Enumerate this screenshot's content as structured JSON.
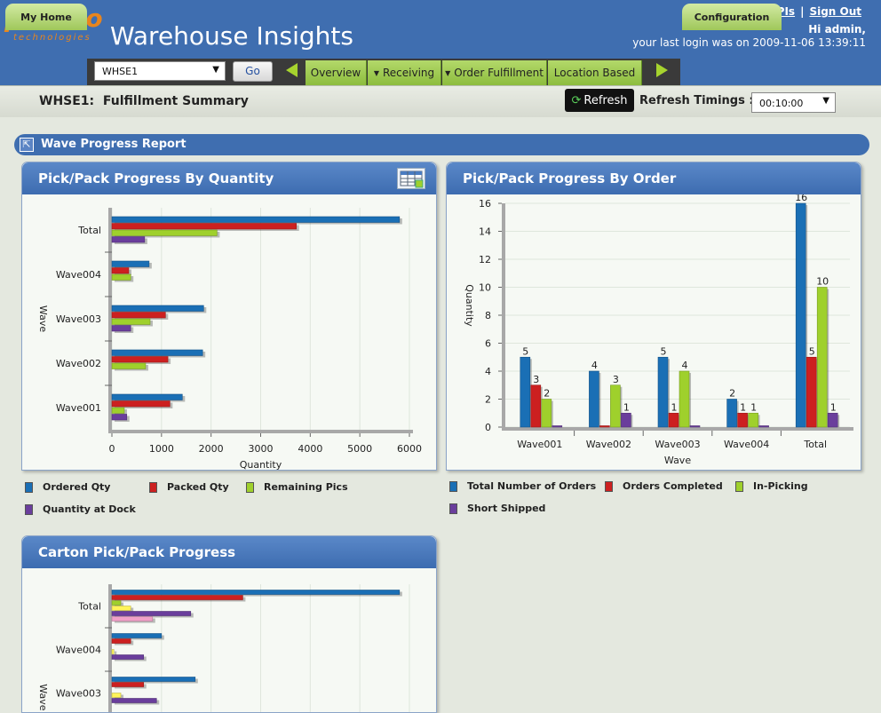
{
  "header": {
    "logo_main": "pronto",
    "logo_sub": "technologies",
    "app_title": "Warehouse Insights",
    "links": [
      "Key KPIs",
      "Sign Out"
    ],
    "link_separator": "|",
    "greeting": "Hi admin,",
    "last_login": "your last login was on 2009-11-06 13:39:11"
  },
  "nav": {
    "my_home": "My Home",
    "warehouse_select": "WHSE1",
    "go_label": "Go",
    "menu_items": [
      {
        "label": "Overview",
        "dropdown": false
      },
      {
        "label": "Receiving",
        "dropdown": true
      },
      {
        "label": "Order Fulfillment",
        "dropdown": true
      },
      {
        "label": "Location Based",
        "dropdown": false
      }
    ],
    "configuration": "Configuration"
  },
  "subbar": {
    "page_heading": "WHSE1:  Fulfillment Summary",
    "refresh_label": "Refresh",
    "refresh_timings_label": "Refresh Timings :",
    "refresh_timing_value": "00:10:00"
  },
  "wave_section": {
    "title": "Wave Progress Report"
  },
  "panels": {
    "quantity_title": "Pick/Pack Progress By Quantity",
    "order_title": "Pick/Pack Progress By Order",
    "carton_title": "Carton Pick/Pack Progress"
  },
  "colors": {
    "header_blue": "#3f6eb0",
    "nav_green": "#9fc75a",
    "blue": "#1a6fb5",
    "red": "#cc2020",
    "green": "#9fd02c",
    "purple": "#6a3e9c",
    "yellow": "#fff45a",
    "pink": "#f0a0c8"
  },
  "chart_data": [
    {
      "type": "bar",
      "orientation": "horizontal",
      "title": "Pick/Pack Progress By Quantity",
      "xlabel": "Quantity",
      "ylabel": "Wave",
      "categories": [
        "Total",
        "Wave004",
        "Wave003",
        "Wave002",
        "Wave001"
      ],
      "xlim": [
        0,
        6000
      ],
      "xticks": [
        0,
        1000,
        2000,
        3000,
        4000,
        5000,
        6000
      ],
      "series": [
        {
          "name": "Ordered Qty",
          "color": "#1a6fb5",
          "values": [
            5800,
            750,
            1850,
            1830,
            1420
          ]
        },
        {
          "name": "Packed Qty",
          "color": "#cc2020",
          "values": [
            3720,
            340,
            1080,
            1130,
            1170
          ]
        },
        {
          "name": "Remaining Pics",
          "color": "#9fd02c",
          "values": [
            2120,
            380,
            770,
            680,
            250
          ]
        },
        {
          "name": "Quantity at Dock",
          "color": "#6a3e9c",
          "values": [
            660,
            0,
            380,
            0,
            300
          ]
        }
      ],
      "legend_position": "bottom"
    },
    {
      "type": "bar",
      "orientation": "vertical",
      "title": "Pick/Pack Progress By Order",
      "xlabel": "Wave",
      "ylabel": "Quantity",
      "categories": [
        "Wave001",
        "Wave002",
        "Wave003",
        "Wave004",
        "Total"
      ],
      "ylim": [
        0,
        16
      ],
      "yticks": [
        0,
        2,
        4,
        6,
        8,
        10,
        12,
        14,
        16
      ],
      "series": [
        {
          "name": "Total Number of Orders",
          "color": "#1a6fb5",
          "values": [
            5,
            4,
            5,
            2,
            16
          ],
          "labels": [
            "5",
            "4",
            "5",
            "2",
            "16"
          ]
        },
        {
          "name": "Orders Completed",
          "color": "#cc2020",
          "values": [
            3,
            0,
            1,
            1,
            5
          ],
          "labels": [
            "3",
            "",
            "1",
            "1",
            "5"
          ]
        },
        {
          "name": "In-Picking",
          "color": "#9fd02c",
          "values": [
            2,
            3,
            4,
            1,
            10
          ],
          "labels": [
            "2",
            "3",
            "4",
            "1",
            "10"
          ]
        },
        {
          "name": "Short Shipped",
          "color": "#6a3e9c",
          "values": [
            0,
            1,
            0,
            0,
            1
          ],
          "labels": [
            "",
            "1",
            "",
            "",
            "1"
          ]
        }
      ],
      "legend_position": "bottom"
    },
    {
      "type": "bar",
      "orientation": "horizontal",
      "title": "Carton Pick/Pack Progress",
      "ylabel": "Wave",
      "categories": [
        "Total",
        "Wave004",
        "Wave003"
      ],
      "xlim": [
        0,
        6000
      ],
      "series": [
        {
          "color": "#1a6fb5",
          "values": [
            5800,
            1000,
            1680
          ]
        },
        {
          "color": "#cc2020",
          "values": [
            2640,
            380,
            640
          ]
        },
        {
          "color": "#9fd02c",
          "values": [
            180,
            0,
            0
          ]
        },
        {
          "color": "#fff45a",
          "values": [
            380,
            40,
            180
          ]
        },
        {
          "color": "#6a3e9c",
          "values": [
            1590,
            640,
            900
          ]
        },
        {
          "color": "#f0a0c8",
          "values": [
            820,
            0,
            0
          ]
        }
      ]
    }
  ]
}
